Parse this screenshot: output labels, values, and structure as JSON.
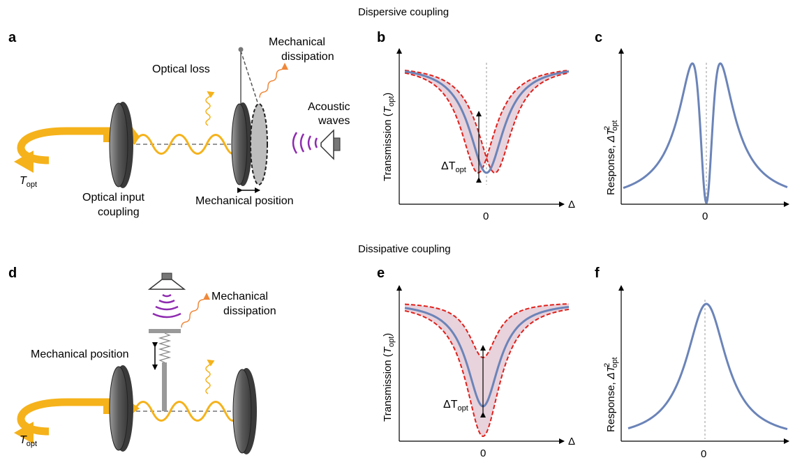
{
  "sections": {
    "dispersive_title": "Dispersive coupling",
    "dissipative_title": "Dissipative coupling"
  },
  "panels": {
    "a": {
      "letter": "a",
      "optical_loss": "Optical loss",
      "mechanical_dissipation_1": "Mechanical",
      "mechanical_dissipation_2": "dissipation",
      "acoustic_1": "Acoustic",
      "acoustic_2": "waves",
      "optical_input_1": "Optical input",
      "optical_input_2": "coupling",
      "mechanical_position": "Mechanical position",
      "t_opt_T": "T",
      "t_opt_sub": "opt"
    },
    "b": {
      "letter": "b",
      "ylabel_main": "Transmission (",
      "ylabel_T": "T",
      "ylabel_sub": "opt",
      "ylabel_close": ")",
      "delta_T": "ΔT",
      "delta_sub": "opt",
      "x_axis": "Δ",
      "zero": "0"
    },
    "c": {
      "letter": "c",
      "ylabel_main": "Response, ",
      "ylabel_T": "ΔT",
      "ylabel_sup": "2",
      "ylabel_sub": "opt",
      "x_axis": "Δ",
      "zero": "0"
    },
    "d": {
      "letter": "d",
      "mechanical_dissipation_1": "Mechanical",
      "mechanical_dissipation_2": "dissipation",
      "mechanical_position": "Mechanical position",
      "t_opt_T": "T",
      "t_opt_sub": "opt"
    },
    "e": {
      "letter": "e",
      "ylabel_main": "Transmission (",
      "ylabel_T": "T",
      "ylabel_sub": "opt",
      "ylabel_close": ")",
      "delta_T": "ΔT",
      "delta_sub": "opt",
      "x_axis": "Δ",
      "zero": "0"
    },
    "f": {
      "letter": "f",
      "ylabel_main": "Response, ",
      "ylabel_T": "ΔT",
      "ylabel_sup": "2",
      "ylabel_sub": "opt",
      "x_axis": "Δ",
      "zero": "0"
    }
  },
  "colors": {
    "light": "#F5B21A",
    "curve": "#6B84B8",
    "dashed_red": "#E0201A",
    "band": "#E6CDD8",
    "acoustic": "#8E2BB0",
    "dissipation": "#F0883A",
    "mirror": "#6E6E6E"
  },
  "icons": [
    "mirror-icon",
    "speaker-icon",
    "spring-icon",
    "wavy-arrow-icon"
  ]
}
